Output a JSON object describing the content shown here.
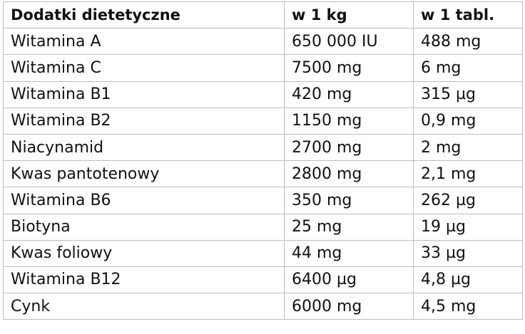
{
  "table": {
    "headers": [
      "Dodatki dietetyczne",
      "w 1 kg",
      "w 1 tabl."
    ],
    "rows": [
      [
        "Witamina A",
        "650 000 IU",
        "488 mg"
      ],
      [
        "Witamina C",
        "7500 mg",
        "6 mg"
      ],
      [
        "Witamina B1",
        "420 mg",
        "315 µg"
      ],
      [
        "Witamina B2",
        "1150 mg",
        "0,9 mg"
      ],
      [
        "Niacynamid",
        "2700 mg",
        "2 mg"
      ],
      [
        "Kwas pantotenowy",
        "2800 mg",
        "2,1 mg"
      ],
      [
        "Witamina B6",
        "350 mg",
        "262 µg"
      ],
      [
        "Biotyna",
        "25 mg",
        "19 µg"
      ],
      [
        "Kwas foliowy",
        "44 mg",
        "33 µg"
      ],
      [
        "Witamina B12",
        "6400 µg",
        "4,8 µg"
      ],
      [
        "Cynk",
        "6000 mg",
        "4,5 mg"
      ]
    ]
  }
}
